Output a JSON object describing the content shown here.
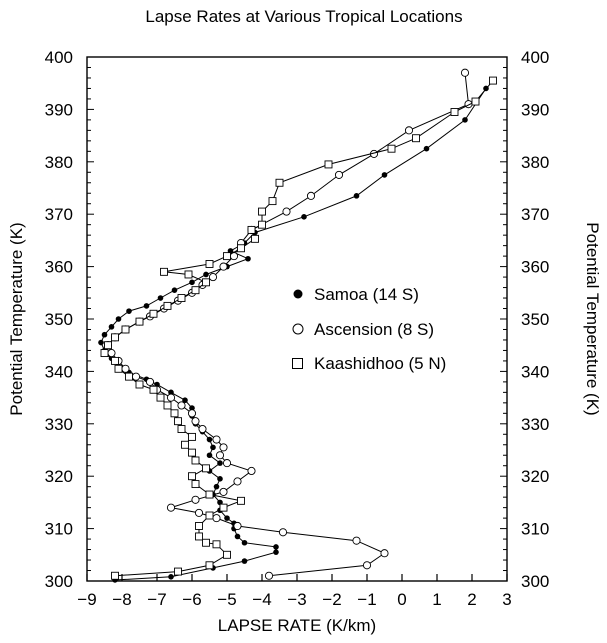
{
  "chart_data": {
    "type": "line",
    "title": "Lapse Rates at Various Tropical Locations",
    "xlabel": "LAPSE RATE (K/km)",
    "ylabel": "Potential Temperature (K)",
    "ylabel_right": "Potential Temperature (K)",
    "xlim": [
      -9,
      3
    ],
    "ylim": [
      300,
      400
    ],
    "xticks": [
      -9,
      -8,
      -7,
      -6,
      -5,
      -4,
      -3,
      -2,
      -1,
      0,
      1,
      2,
      3
    ],
    "yticks": [
      300,
      310,
      320,
      330,
      340,
      350,
      360,
      370,
      380,
      390,
      400
    ],
    "grid": false,
    "legend_position": "center-right",
    "series": [
      {
        "name": "Samoa (14 S)",
        "marker": "filled-circle",
        "points": [
          [
            -8.2,
            300.2
          ],
          [
            -6.6,
            300.8
          ],
          [
            -5.4,
            302.5
          ],
          [
            -4.5,
            303.8
          ],
          [
            -3.6,
            305.5
          ],
          [
            -3.6,
            306.5
          ],
          [
            -4.5,
            307.3
          ],
          [
            -4.7,
            308.5
          ],
          [
            -4.8,
            310.0
          ],
          [
            -4.8,
            311.0
          ],
          [
            -5.0,
            312.0
          ],
          [
            -5.2,
            313.5
          ],
          [
            -5.2,
            315.0
          ],
          [
            -5.4,
            316.5
          ],
          [
            -5.3,
            318.0
          ],
          [
            -5.2,
            319.5
          ],
          [
            -5.5,
            321.0
          ],
          [
            -5.2,
            322.5
          ],
          [
            -5.5,
            324.0
          ],
          [
            -5.4,
            325.5
          ],
          [
            -5.5,
            327.0
          ],
          [
            -5.7,
            328.5
          ],
          [
            -5.9,
            330.0
          ],
          [
            -6.0,
            331.5
          ],
          [
            -6.0,
            333.0
          ],
          [
            -6.2,
            334.5
          ],
          [
            -6.6,
            336.0
          ],
          [
            -7.0,
            337.5
          ],
          [
            -7.3,
            338.5
          ],
          [
            -7.8,
            339.8
          ],
          [
            -8.1,
            341.0
          ],
          [
            -8.3,
            342.5
          ],
          [
            -8.5,
            344.0
          ],
          [
            -8.6,
            345.5
          ],
          [
            -8.5,
            347.0
          ],
          [
            -8.3,
            348.5
          ],
          [
            -8.1,
            350.0
          ],
          [
            -7.8,
            351.5
          ],
          [
            -7.3,
            352.5
          ],
          [
            -6.9,
            354.0
          ],
          [
            -6.5,
            355.5
          ],
          [
            -6.0,
            357.0
          ],
          [
            -5.6,
            358.5
          ],
          [
            -5.0,
            360.0
          ],
          [
            -4.4,
            361.5
          ],
          [
            -4.9,
            363.0
          ],
          [
            -4.5,
            364.5
          ],
          [
            -4.2,
            366.5
          ],
          [
            -2.8,
            369.5
          ],
          [
            -1.3,
            373.5
          ],
          [
            -0.5,
            377.5
          ],
          [
            0.7,
            382.5
          ],
          [
            1.8,
            388.0
          ],
          [
            2.4,
            394.0
          ]
        ]
      },
      {
        "name": "Ascension (8 S)",
        "marker": "open-circle",
        "points": [
          [
            -3.8,
            301.0
          ],
          [
            -1.0,
            303.0
          ],
          [
            -0.5,
            305.3
          ],
          [
            -1.3,
            307.7
          ],
          [
            -3.4,
            309.3
          ],
          [
            -4.7,
            310.5
          ],
          [
            -5.3,
            312.0
          ],
          [
            -5.8,
            313.0
          ],
          [
            -6.6,
            314.0
          ],
          [
            -5.9,
            315.5
          ],
          [
            -5.1,
            317.0
          ],
          [
            -4.7,
            319.0
          ],
          [
            -4.3,
            321.0
          ],
          [
            -5.0,
            322.5
          ],
          [
            -5.2,
            324.0
          ],
          [
            -5.1,
            325.5
          ],
          [
            -5.3,
            327.0
          ],
          [
            -5.7,
            329.0
          ],
          [
            -5.9,
            330.5
          ],
          [
            -6.0,
            332.0
          ],
          [
            -6.3,
            333.5
          ],
          [
            -6.6,
            335.0
          ],
          [
            -7.0,
            336.5
          ],
          [
            -7.2,
            338.0
          ],
          [
            -7.6,
            339.0
          ],
          [
            -7.9,
            340.5
          ],
          [
            -8.1,
            342.0
          ],
          [
            -8.3,
            343.5
          ],
          [
            -8.4,
            345.0
          ],
          [
            -8.2,
            346.5
          ],
          [
            -7.9,
            348.0
          ],
          [
            -7.5,
            349.5
          ],
          [
            -7.2,
            350.5
          ],
          [
            -6.8,
            352.0
          ],
          [
            -6.4,
            353.5
          ],
          [
            -6.0,
            355.0
          ],
          [
            -5.7,
            356.5
          ],
          [
            -5.4,
            358.0
          ],
          [
            -5.1,
            360.0
          ],
          [
            -4.8,
            362.0
          ],
          [
            -4.6,
            364.5
          ],
          [
            -4.3,
            367.0
          ],
          [
            -3.3,
            370.5
          ],
          [
            -2.6,
            373.5
          ],
          [
            -1.8,
            377.5
          ],
          [
            -0.8,
            381.5
          ],
          [
            0.2,
            386.0
          ],
          [
            1.9,
            391.0
          ],
          [
            1.8,
            397.0
          ]
        ]
      },
      {
        "name": "Kaashidhoo (5 N)",
        "marker": "open-square",
        "points": [
          [
            -8.2,
            301.0
          ],
          [
            -6.4,
            301.8
          ],
          [
            -5.5,
            303.0
          ],
          [
            -5.0,
            305.0
          ],
          [
            -5.3,
            307.0
          ],
          [
            -5.6,
            307.3
          ],
          [
            -5.8,
            308.5
          ],
          [
            -5.8,
            310.5
          ],
          [
            -5.5,
            312.5
          ],
          [
            -5.1,
            314.0
          ],
          [
            -4.6,
            315.3
          ],
          [
            -5.5,
            316.5
          ],
          [
            -5.9,
            318.5
          ],
          [
            -6.0,
            320.0
          ],
          [
            -5.6,
            321.5
          ],
          [
            -5.9,
            323.0
          ],
          [
            -6.0,
            324.5
          ],
          [
            -6.2,
            326.0
          ],
          [
            -6.0,
            327.5
          ],
          [
            -6.3,
            329.0
          ],
          [
            -6.4,
            330.5
          ],
          [
            -6.5,
            332.0
          ],
          [
            -6.7,
            333.5
          ],
          [
            -6.9,
            335.0
          ],
          [
            -7.1,
            336.5
          ],
          [
            -7.5,
            337.5
          ],
          [
            -7.8,
            339.0
          ],
          [
            -8.1,
            340.5
          ],
          [
            -8.2,
            342.0
          ],
          [
            -8.5,
            343.5
          ],
          [
            -8.4,
            345.0
          ],
          [
            -8.2,
            346.5
          ],
          [
            -7.9,
            348.0
          ],
          [
            -7.5,
            349.5
          ],
          [
            -7.1,
            351.0
          ],
          [
            -6.7,
            352.5
          ],
          [
            -6.3,
            354.0
          ],
          [
            -5.9,
            355.5
          ],
          [
            -5.6,
            357.0
          ],
          [
            -6.1,
            358.5
          ],
          [
            -6.8,
            359.0
          ],
          [
            -5.5,
            360.5
          ],
          [
            -5.0,
            362.0
          ],
          [
            -4.6,
            363.5
          ],
          [
            -4.2,
            365.3
          ],
          [
            -4.3,
            367.0
          ],
          [
            -4.0,
            368.0
          ],
          [
            -4.0,
            370.5
          ],
          [
            -3.7,
            372.5
          ],
          [
            -3.5,
            376.0
          ],
          [
            -2.1,
            379.5
          ],
          [
            -0.3,
            382.5
          ],
          [
            0.4,
            384.5
          ],
          [
            1.5,
            389.5
          ],
          [
            2.1,
            391.5
          ],
          [
            2.6,
            395.5
          ]
        ]
      }
    ]
  }
}
